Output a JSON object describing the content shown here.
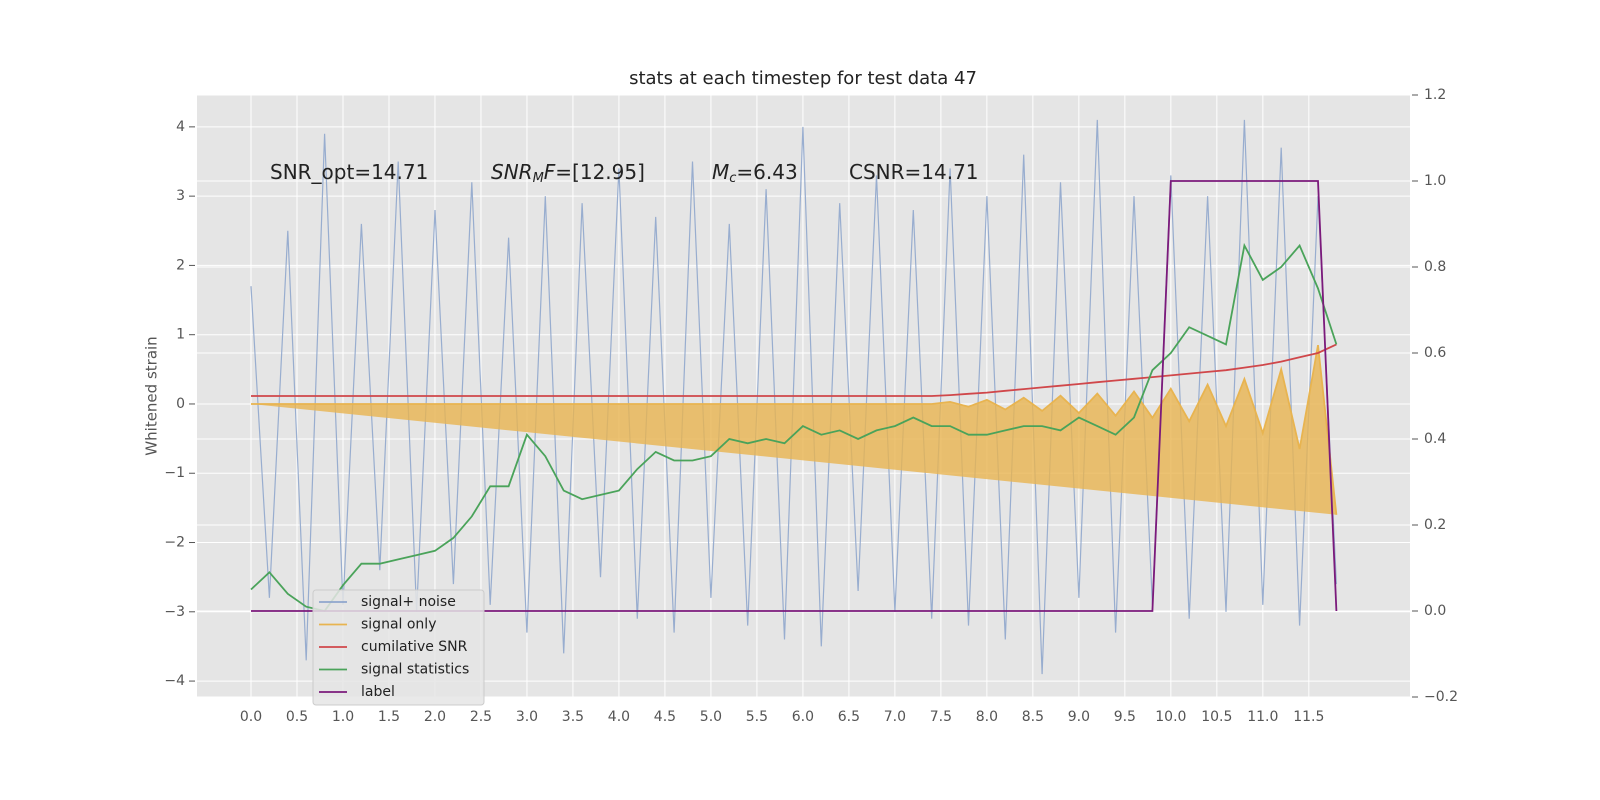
{
  "chart_data": {
    "type": "line",
    "title": "stats at each timestep for test data 47",
    "y_label": "Whitened strain",
    "annotations": [
      {
        "base": "SNR_opt=14.71"
      },
      {
        "base": "SNR",
        "sub": "M",
        "tail": "F",
        "rest": "=[12.95]"
      },
      {
        "base": "M",
        "sub": "c",
        "rest": "=6.43"
      },
      {
        "base": "CSNR=14.71"
      }
    ],
    "x": [
      0,
      0.2,
      0.4,
      0.6,
      0.8,
      1.0,
      1.2,
      1.4,
      1.6,
      1.8,
      2.0,
      2.2,
      2.4,
      2.6,
      2.8,
      3.0,
      3.2,
      3.4,
      3.6,
      3.8,
      4.0,
      4.2,
      4.4,
      4.6,
      4.8,
      5.0,
      5.2,
      5.4,
      5.6,
      5.8,
      6.0,
      6.2,
      6.4,
      6.6,
      6.8,
      7.0,
      7.2,
      7.4,
      7.6,
      7.8,
      8.0,
      8.2,
      8.4,
      8.6,
      8.8,
      9.0,
      9.2,
      9.4,
      9.6,
      9.8,
      10.0,
      10.2,
      10.4,
      10.6,
      10.8,
      11.0,
      11.2,
      11.4,
      11.6,
      11.8
    ],
    "series": [
      {
        "name": "signal+ noise",
        "color": "#8fa6cc",
        "values": [
          1.7,
          -2.8,
          2.5,
          -3.7,
          3.9,
          -2.9,
          2.6,
          -2.4,
          3.5,
          -3.0,
          2.8,
          -2.6,
          3.2,
          -2.9,
          2.4,
          -3.3,
          3.0,
          -3.6,
          2.9,
          -2.5,
          3.4,
          -3.1,
          2.7,
          -3.3,
          3.5,
          -2.8,
          2.6,
          -3.2,
          3.1,
          -3.4,
          4.0,
          -3.5,
          2.9,
          -2.7,
          3.3,
          -3.0,
          2.8,
          -3.1,
          3.4,
          -3.2,
          3.0,
          -3.4,
          3.6,
          -3.9,
          3.2,
          -2.8,
          4.1,
          -3.3,
          3.0,
          -2.9,
          3.3,
          -3.1,
          3.0,
          -3.0,
          4.1,
          -2.9,
          3.7,
          -3.2,
          3.0,
          -2.6
        ]
      },
      {
        "name": "signal only",
        "color": "#e8b450",
        "values": [
          0,
          0,
          0,
          0,
          0,
          0,
          0,
          0,
          0,
          0,
          0,
          0,
          0,
          0,
          0,
          0,
          0,
          0,
          0,
          0,
          0,
          0,
          0,
          0,
          0,
          0,
          0,
          0,
          0,
          0,
          0,
          0,
          0,
          0,
          0,
          0,
          0,
          0,
          0.03,
          -0.04,
          0.06,
          -0.08,
          0.09,
          -0.1,
          0.12,
          -0.13,
          0.15,
          -0.17,
          0.18,
          -0.2,
          0.22,
          -0.25,
          0.28,
          -0.32,
          0.36,
          -0.42,
          0.5,
          -0.65,
          0.85,
          -1.6
        ]
      },
      {
        "name": "cumilative SNR",
        "color": "#d0474a",
        "axis": "y2",
        "values": [
          0.5,
          0.5,
          0.5,
          0.5,
          0.5,
          0.5,
          0.5,
          0.5,
          0.5,
          0.5,
          0.5,
          0.5,
          0.5,
          0.5,
          0.5,
          0.5,
          0.5,
          0.5,
          0.5,
          0.5,
          0.5,
          0.5,
          0.5,
          0.5,
          0.5,
          0.5,
          0.5,
          0.5,
          0.5,
          0.5,
          0.5,
          0.5,
          0.5,
          0.5,
          0.5,
          0.5,
          0.5,
          0.5,
          0.502,
          0.505,
          0.508,
          0.512,
          0.516,
          0.52,
          0.524,
          0.528,
          0.532,
          0.536,
          0.54,
          0.544,
          0.548,
          0.552,
          0.556,
          0.56,
          0.566,
          0.572,
          0.58,
          0.59,
          0.6,
          0.62
        ]
      },
      {
        "name": "signal statistics",
        "color": "#4aa35a",
        "axis": "y2",
        "values": [
          0.05,
          0.09,
          0.04,
          0.01,
          0.0,
          0.06,
          0.11,
          0.11,
          0.12,
          0.13,
          0.14,
          0.17,
          0.22,
          0.29,
          0.29,
          0.41,
          0.36,
          0.28,
          0.26,
          0.27,
          0.28,
          0.33,
          0.37,
          0.35,
          0.35,
          0.36,
          0.4,
          0.39,
          0.4,
          0.39,
          0.43,
          0.41,
          0.42,
          0.4,
          0.42,
          0.43,
          0.45,
          0.43,
          0.43,
          0.41,
          0.41,
          0.42,
          0.43,
          0.43,
          0.42,
          0.45,
          0.43,
          0.41,
          0.45,
          0.56,
          0.6,
          0.66,
          0.64,
          0.62,
          0.85,
          0.77,
          0.8,
          0.85,
          0.75,
          0.62
        ]
      },
      {
        "name": "label",
        "color": "#7b1a7b",
        "axis": "y2",
        "values": [
          0,
          0,
          0,
          0,
          0,
          0,
          0,
          0,
          0,
          0,
          0,
          0,
          0,
          0,
          0,
          0,
          0,
          0,
          0,
          0,
          0,
          0,
          0,
          0,
          0,
          0,
          0,
          0,
          0,
          0,
          0,
          0,
          0,
          0,
          0,
          0,
          0,
          0,
          0,
          0,
          0,
          0,
          0,
          0,
          0,
          0,
          0,
          0,
          0,
          0,
          1,
          1,
          1,
          1,
          1,
          1,
          1,
          1,
          1,
          0
        ]
      }
    ],
    "xlim": [
      -0.587,
      12.6
    ],
    "xticks": [
      {
        "value": 0,
        "label": "0.0"
      },
      0.5,
      {
        "value": 1,
        "label": "1.0"
      },
      1.5,
      {
        "value": 2,
        "label": "2.0"
      },
      2.5,
      {
        "value": 3,
        "label": "3.0"
      },
      3.5,
      {
        "value": 4,
        "label": "4.0"
      },
      4.5,
      {
        "value": 5,
        "label": "5.0"
      },
      5.5,
      {
        "value": 6,
        "label": "6.0"
      },
      6.5,
      {
        "value": 7,
        "label": "7.0"
      },
      7.5,
      {
        "value": 8,
        "label": "8.0"
      },
      8.5,
      {
        "value": 9,
        "label": "9.0"
      },
      9.5,
      {
        "value": 10,
        "label": "10.0"
      },
      10.5,
      {
        "value": 11,
        "label": "11.0"
      },
      11.5
    ],
    "ylim": [
      -4.23,
      4.46
    ],
    "yticks": [
      {
        "value": -4,
        "label": "−4"
      },
      {
        "value": -3,
        "label": "−3"
      },
      {
        "value": -2,
        "label": "−2"
      },
      {
        "value": -1,
        "label": "−1"
      },
      0,
      1,
      2,
      3,
      4
    ],
    "y2lim": [
      -0.2,
      1.2
    ],
    "y2ticks": [
      {
        "value": -0.2,
        "label": "−0.2"
      },
      {
        "value": 0,
        "label": "0.0"
      },
      0.2,
      0.4,
      0.6,
      0.8,
      {
        "value": 1,
        "label": "1.0"
      },
      1.2
    ],
    "grid": true,
    "legend": "lower left"
  }
}
